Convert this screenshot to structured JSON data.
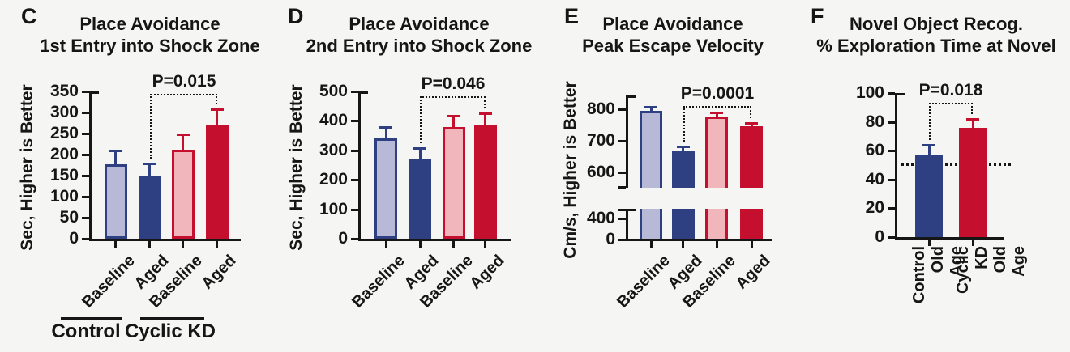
{
  "figure_type": "scientific-bar-chart-figure",
  "colors": {
    "lavender": "#b8b9d6",
    "dark_blue": "#2e3f82",
    "pink": "#f1b5bc",
    "red": "#c50f2f",
    "axis": "#161616",
    "background": "#f5f5f3"
  },
  "chart_data": [
    {
      "panel": "C",
      "type": "bar",
      "title": [
        "Place Avoidance",
        "1st Entry into Shock Zone"
      ],
      "ylabel": "Sec, Higher is Better",
      "ylim": [
        0,
        350
      ],
      "yticks": [
        0,
        50,
        100,
        150,
        200,
        250,
        300,
        350
      ],
      "categories": [
        "Baseline",
        "Aged",
        "Baseline",
        "Aged"
      ],
      "values": [
        176,
        150,
        212,
        270
      ],
      "errors": [
        34,
        29,
        36,
        37
      ],
      "bar_colors": [
        "lavender",
        "dark_blue",
        "pink",
        "red"
      ],
      "bar_strokes": [
        "dark_blue",
        "dark_blue",
        "red",
        "red"
      ],
      "groups": [
        {
          "label": "Control",
          "bars": [
            0,
            1
          ]
        },
        {
          "label": "Cyclic KD",
          "bars": [
            2,
            3
          ]
        }
      ],
      "significance": {
        "label": "P=0.015",
        "from": 1,
        "to": 3,
        "y": 345
      }
    },
    {
      "panel": "D",
      "type": "bar",
      "title": [
        "Place Avoidance",
        "2nd Entry into Shock Zone"
      ],
      "ylabel": "Sec, Higher is Better",
      "ylim": [
        0,
        500
      ],
      "yticks": [
        0,
        100,
        200,
        300,
        400,
        500
      ],
      "categories": [
        "Baseline",
        "Aged",
        "Baseline",
        "Aged"
      ],
      "values": [
        340,
        268,
        378,
        385
      ],
      "errors": [
        39,
        40,
        40,
        42
      ],
      "bar_colors": [
        "lavender",
        "dark_blue",
        "pink",
        "red"
      ],
      "bar_strokes": [
        "dark_blue",
        "dark_blue",
        "red",
        "red"
      ],
      "significance": {
        "label": "P=0.046",
        "from": 1,
        "to": 3,
        "y": 483
      }
    },
    {
      "panel": "E",
      "type": "bar",
      "title": [
        "Place Avoidance",
        "Peak Escape Velocity"
      ],
      "ylabel": "Cm/s, Higher is Better",
      "axis_break": true,
      "ylim": [
        550,
        845
      ],
      "yticks": [
        600,
        700,
        800
      ],
      "yticks_lower": [
        0,
        400
      ],
      "categories": [
        "Baseline",
        "Aged",
        "Baseline",
        "Aged"
      ],
      "values": [
        795,
        667,
        777,
        746
      ],
      "errors": [
        15,
        16,
        14,
        11
      ],
      "bar_colors": [
        "lavender",
        "dark_blue",
        "pink",
        "red"
      ],
      "bar_strokes": [
        "dark_blue",
        "dark_blue",
        "red",
        "red"
      ],
      "significance": {
        "label": "P=0.0001",
        "from": 1,
        "to": 3,
        "y": 812
      }
    },
    {
      "panel": "F",
      "type": "bar",
      "title": [
        "Novel Object Recog.",
        "% Exploration Time at Novel"
      ],
      "ylabel": "",
      "ylim": [
        0,
        100
      ],
      "yticks": [
        0,
        20,
        40,
        60,
        80,
        100
      ],
      "categories": [
        "Control\nOld Age",
        "Cyclic KD\nOld Age"
      ],
      "values": [
        57,
        76
      ],
      "errors": [
        7,
        6
      ],
      "bar_colors": [
        "dark_blue",
        "red"
      ],
      "bar_strokes": [
        "dark_blue",
        "red"
      ],
      "reference_line": 50,
      "significance": {
        "label": "P=0.018",
        "from": 0,
        "to": 1,
        "y": 93
      }
    }
  ]
}
